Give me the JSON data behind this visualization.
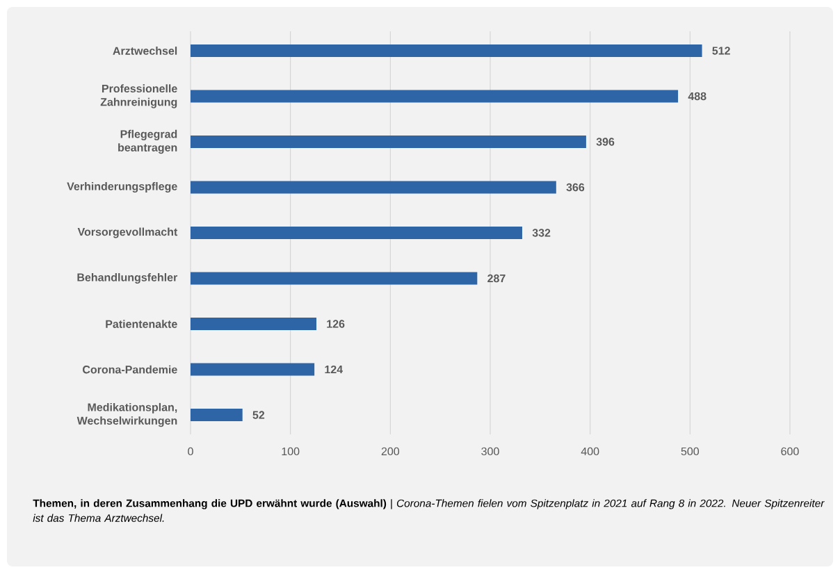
{
  "chart_data": {
    "type": "bar",
    "orientation": "horizontal",
    "title": "**Themen, in deren Zusammenhang die UPD erwähnt wurde (Auswahl)** | *Corona-Themen fielen vom Spitzenplatz in 2021 auf Rang 8 in 2022. Neuer Spitzenreiter ist das Thema Arztwechsel.*",
    "categories": [
      "Arztwechsel",
      "Professionelle Zahnreinigung",
      "Pflegegrad beantragen",
      "Verhinderungspflege",
      "Vorsorgevollmacht",
      "Behandlungsfehler",
      "Patientenakte",
      "Corona-Pandemie",
      "Medikationsplan, Wechselwirkungen"
    ],
    "values": [
      512,
      488,
      396,
      366,
      332,
      287,
      126,
      124,
      52
    ],
    "color": "#2e65a6",
    "data_labels": true,
    "grid": "x",
    "xlim": [
      0,
      600
    ],
    "xticks": [
      0,
      100,
      200,
      300,
      400,
      500,
      600
    ]
  }
}
